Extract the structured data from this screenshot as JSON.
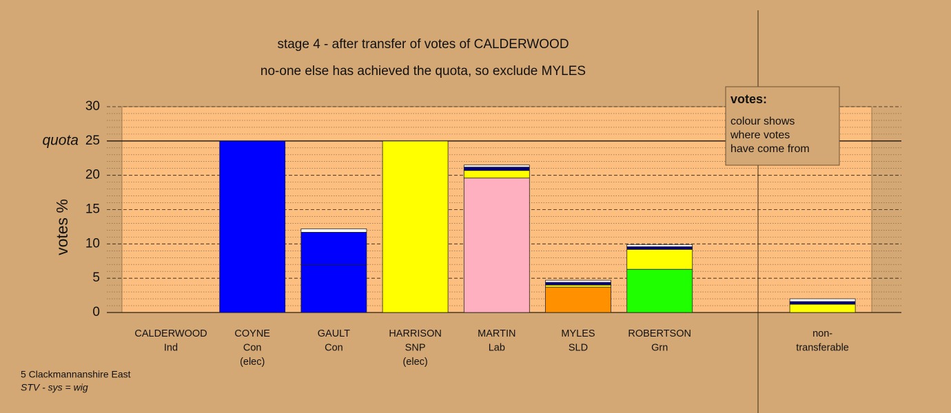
{
  "chart_data": {
    "type": "bar",
    "stacked": true,
    "title": "stage 4 - after transfer of votes of CALDERWOOD",
    "subtitle": "no-one else has achieved the quota, so exclude MYLES",
    "y_label": "votes %",
    "categories": [
      [
        "CALDERWOOD",
        "Ind"
      ],
      [
        "COYNE",
        "Con",
        "(elec)"
      ],
      [
        "GAULT",
        "Con"
      ],
      [
        "HARRISON",
        "SNP",
        "(elec)"
      ],
      [
        "MARTIN",
        "Lab"
      ],
      [
        "MYLES",
        "SLD"
      ],
      [
        "ROBERTSON",
        "Grn"
      ],
      null,
      [
        "non-",
        "transferable"
      ]
    ],
    "series": [
      {
        "colors": [
          "#ffffff",
          "#0000ff",
          "#0000ff",
          "#ffff00",
          "#ffb0c0",
          "#ff9000",
          "#20ff00",
          null,
          "#ffffff"
        ],
        "values": [
          0,
          25,
          7.0,
          25,
          19.6,
          3.7,
          6.3,
          null,
          0
        ]
      },
      {
        "colors": [
          "#ffff00",
          "#ffff00",
          "#ffff00",
          "#ffff00",
          "#ffff00",
          "#ffff00",
          "#ffff00",
          null,
          "#ffff00"
        ],
        "values": [
          0,
          0,
          0,
          0,
          1.1,
          0.3,
          2.9,
          null,
          1.2
        ]
      },
      {
        "colors": [
          "#000080",
          "#000080",
          "#0000ff",
          "#000080",
          "#000080",
          "#000080",
          "#000080",
          null,
          "#000080"
        ],
        "values": [
          0,
          0,
          4.7,
          0,
          0.5,
          0.4,
          0.4,
          null,
          0.4
        ]
      },
      {
        "colors": [
          "#ffffff",
          "#ffffff",
          "#ffffff",
          "#ffffff",
          "#ffffff",
          "#ffffff",
          "#ffffff",
          null,
          "#ffffff"
        ],
        "values": [
          0,
          0,
          0.5,
          0,
          0.3,
          0.3,
          0.3,
          null,
          0.4
        ]
      }
    ],
    "ylim": [
      0,
      30
    ],
    "yticks": [
      0,
      5,
      10,
      15,
      20,
      25,
      30
    ],
    "minor_yticks": [
      1,
      2,
      3,
      4,
      6,
      7,
      8,
      9,
      11,
      12,
      13,
      14,
      16,
      17,
      18,
      19,
      21,
      22,
      23,
      24,
      26,
      27,
      28,
      29
    ],
    "quota": {
      "value": 25,
      "label": "quota"
    },
    "legend_box": {
      "heading": "votes:",
      "lines": [
        "colour shows",
        "where votes",
        "have come from"
      ]
    },
    "footer": [
      "5 Clackmannanshire East",
      "STV - sys = wig"
    ]
  }
}
